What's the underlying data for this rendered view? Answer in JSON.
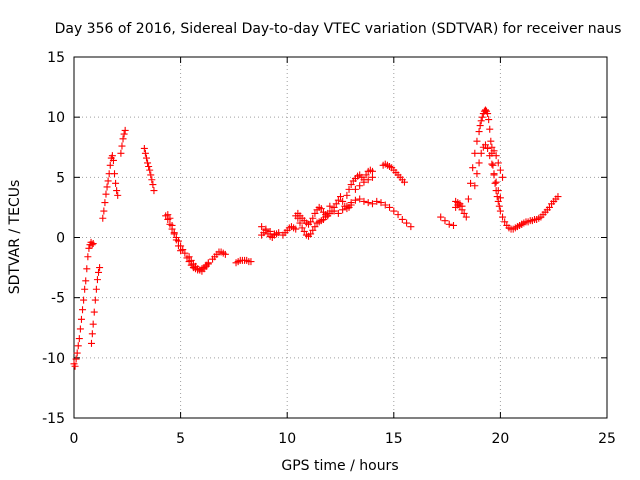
{
  "chart_data": {
    "type": "scatter",
    "title": "Day 356 of 2016, Sidereal Day-to-day VTEC variation (SDTVAR) for receiver naus",
    "xlabel": "GPS time / hours",
    "ylabel": "SDTVAR / TECUs",
    "xlim": [
      0,
      25
    ],
    "ylim": [
      -15,
      15
    ],
    "xticks": [
      "0",
      "5",
      "10",
      "15",
      "20",
      "25"
    ],
    "yticks": [
      "-15",
      "-10",
      "-5",
      "0",
      "5",
      "10",
      "15"
    ],
    "grid": true,
    "marker": "plus",
    "color": "#ff0000",
    "series": [
      {
        "name": "SDTVAR",
        "x": [
          0.0,
          0.05,
          0.1,
          0.15,
          0.2,
          0.25,
          0.3,
          0.35,
          0.4,
          0.45,
          0.5,
          0.55,
          0.6,
          0.65,
          0.7,
          0.75,
          0.8,
          0.85,
          0.9,
          0.82,
          0.86,
          0.9,
          0.95,
          1.0,
          1.05,
          1.1,
          1.15,
          1.2,
          1.35,
          1.4,
          1.45,
          1.5,
          1.55,
          1.6,
          1.65,
          1.7,
          1.75,
          1.8,
          1.85,
          1.9,
          1.95,
          2.0,
          2.05,
          2.2,
          2.25,
          2.3,
          2.35,
          2.4,
          3.3,
          3.35,
          3.4,
          3.45,
          3.5,
          3.55,
          3.6,
          3.65,
          3.7,
          3.75,
          4.3,
          4.4,
          4.5,
          4.6,
          4.7,
          4.8,
          4.9,
          5.0,
          5.1,
          5.2,
          5.3,
          5.4,
          5.5,
          5.6,
          5.7,
          5.8,
          5.9,
          6.0,
          6.1,
          6.2,
          6.3,
          4.4,
          4.5,
          4.6,
          4.7,
          4.8,
          4.9,
          5.0,
          5.4,
          5.5,
          5.6,
          5.7,
          5.8,
          5.9,
          6.0,
          6.1,
          6.2,
          6.3,
          6.5,
          6.6,
          6.7,
          6.8,
          6.9,
          7.0,
          7.1,
          7.6,
          7.7,
          7.8,
          7.9,
          8.0,
          8.1,
          8.2,
          8.3,
          8.8,
          8.9,
          9.0,
          9.1,
          9.2,
          9.3,
          9.4,
          9.5,
          9.6,
          8.8,
          9.0,
          9.2,
          9.4,
          9.8,
          9.9,
          10.0,
          10.1,
          10.2,
          10.3,
          10.4,
          10.4,
          10.5,
          10.6,
          10.7,
          10.8,
          10.9,
          11.0,
          11.1,
          11.2,
          11.3,
          11.4,
          11.5,
          11.6,
          11.7,
          11.8,
          11.9,
          10.5,
          10.6,
          10.7,
          10.8,
          10.9,
          11.0,
          11.1,
          11.2,
          11.3,
          11.4,
          11.5,
          11.6,
          11.7,
          11.8,
          11.9,
          12.0,
          12.1,
          12.2,
          12.3,
          12.4,
          12.5,
          12.6,
          12.7,
          12.8,
          12.9,
          13.0,
          12.0,
          12.2,
          12.4,
          12.6,
          12.8,
          13.0,
          13.2,
          13.4,
          13.6,
          13.8,
          14.0,
          12.8,
          12.9,
          13.0,
          13.1,
          13.2,
          13.3,
          13.4,
          13.5,
          13.6,
          13.7,
          13.8,
          13.9,
          14.0,
          13.2,
          13.4,
          13.6,
          13.8,
          14.0,
          14.2,
          14.4,
          14.6,
          14.8,
          15.0,
          15.2,
          15.4,
          15.6,
          15.8,
          14.5,
          14.6,
          14.7,
          14.8,
          14.9,
          15.0,
          15.1,
          15.2,
          15.3,
          15.4,
          15.5,
          17.2,
          17.4,
          17.6,
          17.8,
          17.9,
          18.0,
          18.1,
          18.2,
          18.3,
          18.4,
          17.9,
          18.0,
          18.1,
          18.2,
          18.5,
          18.6,
          18.7,
          18.8,
          18.9,
          19.0,
          19.05,
          19.1,
          19.15,
          19.2,
          19.25,
          19.3,
          19.35,
          19.4,
          19.45,
          19.5,
          19.55,
          19.6,
          19.65,
          19.7,
          19.75,
          19.8,
          19.85,
          19.9,
          19.95,
          20.0,
          20.1,
          20.2,
          20.3,
          20.4,
          20.5,
          20.6,
          20.7,
          20.8,
          20.9,
          21.0,
          18.8,
          18.9,
          19.0,
          19.1,
          19.2,
          19.3,
          19.4,
          19.5,
          19.6,
          19.7,
          19.8,
          19.9,
          20.0,
          19.6,
          19.7,
          19.8,
          19.9,
          20.0,
          20.1,
          21.0,
          21.1,
          21.2,
          21.3,
          21.4,
          21.5,
          21.6,
          21.7,
          21.8,
          21.9,
          22.0,
          22.1,
          22.2,
          22.3,
          22.4,
          22.5,
          22.6,
          22.7
        ],
        "y": [
          -10.5,
          -10.7,
          -10.1,
          -9.6,
          -9.0,
          -8.4,
          -7.6,
          -6.8,
          -6.0,
          -5.2,
          -4.3,
          -3.6,
          -2.6,
          -1.6,
          -0.9,
          -0.6,
          -0.4,
          -0.6,
          -0.5,
          -8.8,
          -8.0,
          -7.2,
          -6.2,
          -5.2,
          -4.3,
          -3.5,
          -2.9,
          -2.5,
          1.6,
          2.2,
          2.9,
          3.6,
          4.2,
          4.7,
          5.3,
          6.0,
          6.6,
          6.8,
          6.4,
          5.3,
          4.5,
          3.9,
          3.5,
          7.0,
          7.6,
          8.2,
          8.6,
          8.9,
          7.4,
          7.0,
          6.6,
          6.2,
          5.9,
          5.6,
          5.2,
          4.8,
          4.4,
          3.9,
          1.8,
          1.5,
          1.1,
          0.7,
          0.3,
          0.0,
          -0.3,
          -0.7,
          -1.0,
          -1.3,
          -1.7,
          -2.0,
          -2.3,
          -2.5,
          -2.6,
          -2.7,
          -2.7,
          -2.6,
          -2.5,
          -2.3,
          -2.1,
          1.9,
          1.6,
          1.0,
          0.4,
          -0.2,
          -0.7,
          -1.1,
          -1.6,
          -1.9,
          -2.2,
          -2.4,
          -2.6,
          -2.7,
          -2.8,
          -2.6,
          -2.4,
          -2.2,
          -1.8,
          -1.6,
          -1.4,
          -1.2,
          -1.2,
          -1.3,
          -1.4,
          -2.1,
          -2.0,
          -1.9,
          -1.9,
          -1.9,
          -1.9,
          -2.0,
          -2.0,
          0.2,
          0.4,
          0.6,
          0.3,
          0.1,
          0.0,
          0.2,
          0.3,
          0.4,
          0.9,
          0.7,
          0.5,
          0.3,
          0.2,
          0.4,
          0.6,
          0.8,
          0.9,
          0.8,
          0.7,
          1.8,
          1.6,
          1.2,
          0.8,
          0.5,
          0.2,
          0.1,
          0.3,
          0.6,
          0.9,
          1.2,
          1.3,
          1.4,
          1.5,
          1.7,
          2.0,
          2.0,
          1.8,
          1.6,
          1.4,
          1.2,
          1.1,
          1.3,
          1.6,
          2.0,
          2.3,
          2.5,
          2.4,
          2.1,
          1.9,
          1.8,
          2.0,
          2.2,
          2.5,
          2.8,
          3.1,
          3.4,
          3.0,
          2.6,
          2.4,
          2.5,
          2.7,
          2.6,
          2.2,
          2.0,
          2.3,
          2.6,
          2.9,
          3.1,
          3.2,
          3.0,
          2.9,
          2.8,
          3.5,
          4.0,
          4.4,
          4.7,
          4.9,
          5.1,
          5.2,
          5.0,
          4.8,
          5.2,
          5.5,
          5.6,
          5.5,
          4.0,
          4.3,
          4.6,
          4.8,
          5.0,
          3.0,
          2.9,
          2.7,
          2.5,
          2.2,
          1.9,
          1.5,
          1.2,
          0.9,
          6.0,
          6.1,
          6.0,
          5.9,
          5.8,
          5.6,
          5.4,
          5.2,
          5.0,
          4.8,
          4.6,
          1.7,
          1.4,
          1.1,
          1.0,
          2.5,
          2.7,
          2.6,
          2.3,
          2.0,
          1.7,
          3.0,
          2.9,
          2.8,
          2.6,
          3.2,
          4.5,
          5.8,
          7.0,
          8.0,
          8.8,
          9.3,
          9.7,
          10.0,
          10.3,
          10.5,
          10.6,
          10.5,
          10.3,
          9.8,
          9.0,
          8.0,
          7.0,
          6.0,
          5.2,
          4.5,
          3.9,
          3.4,
          3.0,
          2.6,
          2.2,
          1.7,
          1.3,
          1.0,
          0.8,
          0.7,
          0.7,
          0.8,
          0.9,
          1.0,
          1.1,
          4.3,
          5.3,
          6.2,
          7.0,
          7.5,
          7.7,
          7.4,
          6.8,
          6.1,
          5.3,
          4.6,
          3.9,
          3.3,
          7.5,
          7.2,
          6.8,
          6.2,
          5.6,
          5.0,
          1.1,
          1.2,
          1.3,
          1.3,
          1.4,
          1.4,
          1.5,
          1.5,
          1.6,
          1.7,
          1.9,
          2.1,
          2.3,
          2.5,
          2.8,
          3.0,
          3.2,
          3.4
        ]
      }
    ]
  }
}
